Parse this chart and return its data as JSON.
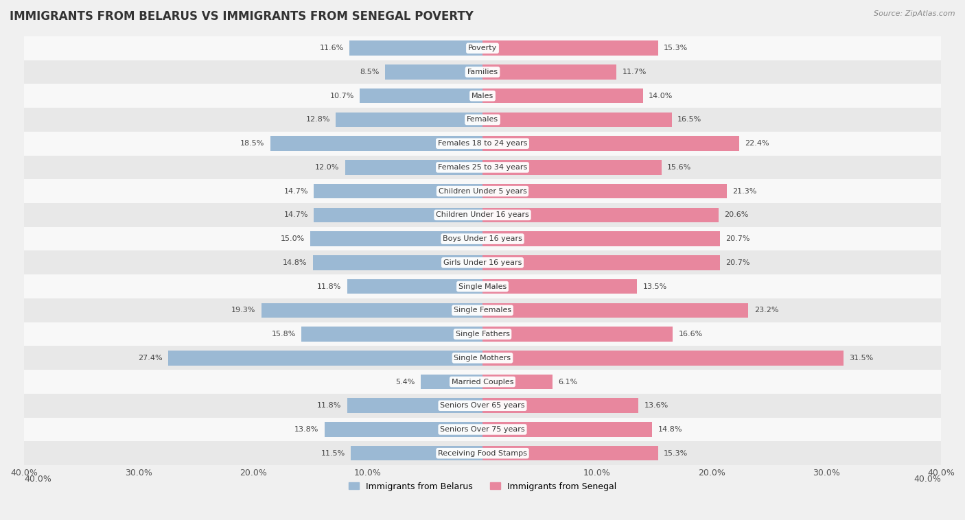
{
  "title": "IMMIGRANTS FROM BELARUS VS IMMIGRANTS FROM SENEGAL POVERTY",
  "source": "Source: ZipAtlas.com",
  "categories": [
    "Poverty",
    "Families",
    "Males",
    "Females",
    "Females 18 to 24 years",
    "Females 25 to 34 years",
    "Children Under 5 years",
    "Children Under 16 years",
    "Boys Under 16 years",
    "Girls Under 16 years",
    "Single Males",
    "Single Females",
    "Single Fathers",
    "Single Mothers",
    "Married Couples",
    "Seniors Over 65 years",
    "Seniors Over 75 years",
    "Receiving Food Stamps"
  ],
  "belarus_values": [
    11.6,
    8.5,
    10.7,
    12.8,
    18.5,
    12.0,
    14.7,
    14.7,
    15.0,
    14.8,
    11.8,
    19.3,
    15.8,
    27.4,
    5.4,
    11.8,
    13.8,
    11.5
  ],
  "senegal_values": [
    15.3,
    11.7,
    14.0,
    16.5,
    22.4,
    15.6,
    21.3,
    20.6,
    20.7,
    20.7,
    13.5,
    23.2,
    16.6,
    31.5,
    6.1,
    13.6,
    14.8,
    15.3
  ],
  "belarus_color": "#9bb9d4",
  "senegal_color": "#e8879e",
  "background_color": "#f0f0f0",
  "row_color_odd": "#e8e8e8",
  "row_color_even": "#f8f8f8",
  "axis_max": 40.0,
  "bar_height": 0.62,
  "title_fontsize": 12,
  "label_fontsize": 8,
  "tick_fontsize": 9,
  "legend_fontsize": 9,
  "source_fontsize": 8,
  "value_label_color": "#444444"
}
